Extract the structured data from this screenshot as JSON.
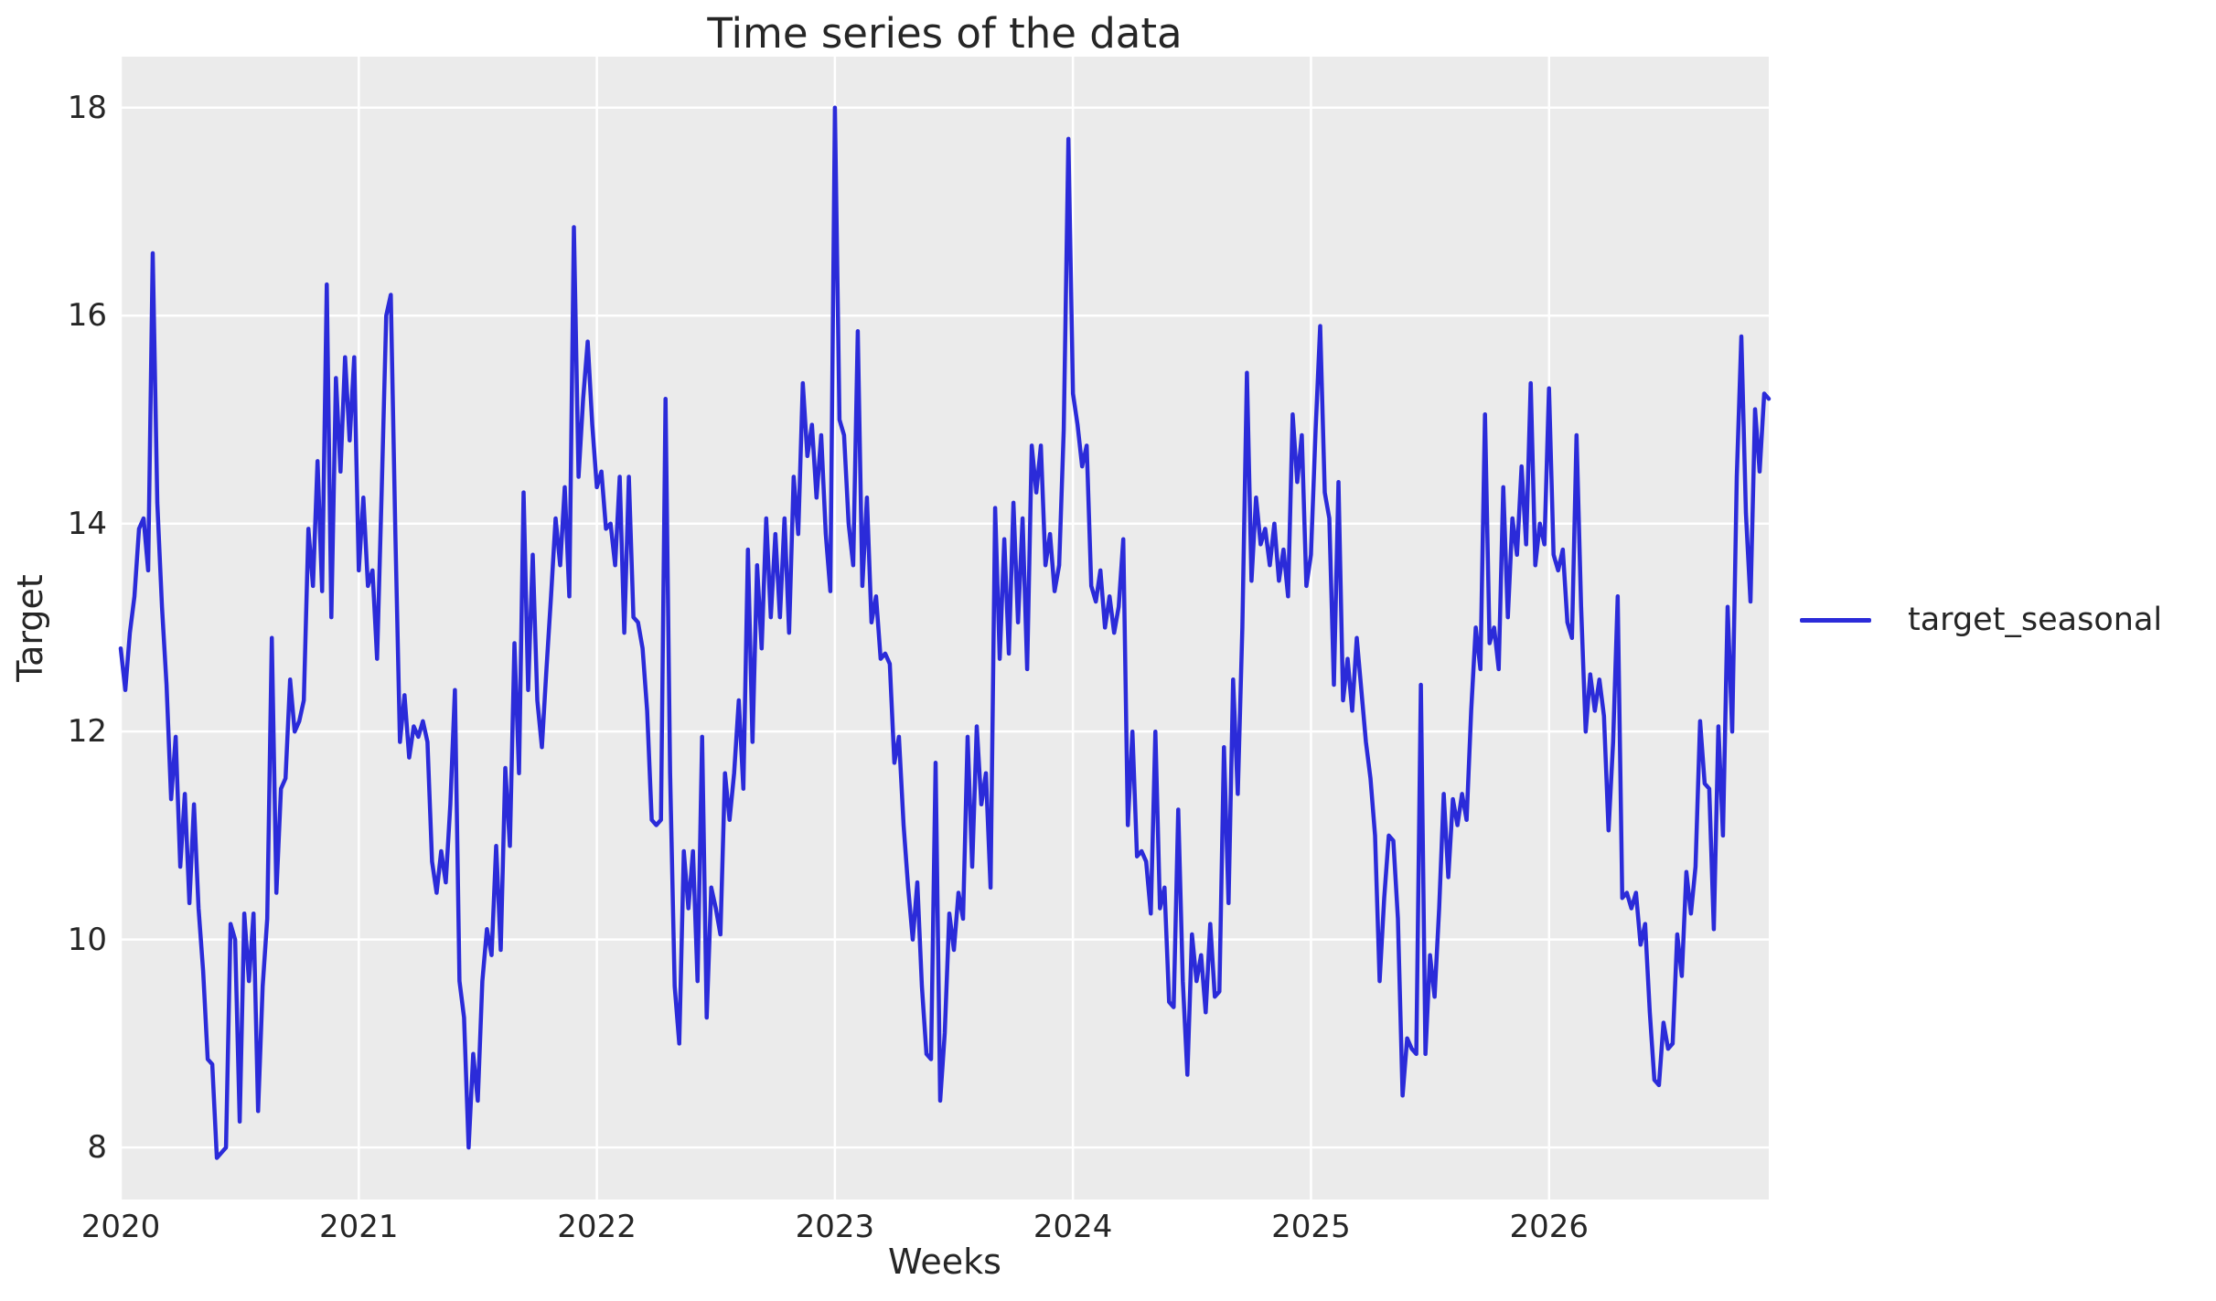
{
  "style": {
    "figure_background": "#ffffff",
    "plot_background": "#ebebeb",
    "grid_color": "#ffffff",
    "text_color": "#262626",
    "line_color": "#2b2bd9"
  },
  "legend": {
    "label": "target_seasonal"
  },
  "chart_data": {
    "type": "line",
    "title": "Time series of the data",
    "xlabel": "Weeks",
    "ylabel": "Target",
    "x_tick_labels": [
      "2020",
      "2021",
      "2022",
      "2023",
      "2024",
      "2025",
      "2026"
    ],
    "x_tick_week_indices": [
      0,
      52,
      104,
      156,
      208,
      260,
      312
    ],
    "y_tick_labels": [
      "8",
      "10",
      "12",
      "14",
      "16",
      "18"
    ],
    "y_tick_values": [
      8,
      10,
      12,
      14,
      16,
      18
    ],
    "ylim": [
      7.5,
      18.49
    ],
    "x_start_year": 2020,
    "points_per_year": 52,
    "frequency": "weekly",
    "grid": true,
    "legend_position": "outside-right-center",
    "series": [
      {
        "name": "target_seasonal",
        "color": "#2b2bd9",
        "values": [
          12.8,
          12.4,
          12.95,
          13.3,
          13.95,
          14.05,
          13.55,
          16.6,
          14.2,
          13.2,
          12.45,
          11.35,
          11.95,
          10.7,
          11.4,
          10.35,
          11.3,
          10.3,
          9.7,
          8.85,
          8.8,
          7.9,
          7.95,
          8.0,
          10.15,
          10.0,
          8.25,
          10.25,
          9.6,
          10.25,
          8.35,
          9.55,
          10.2,
          12.9,
          10.45,
          11.45,
          11.55,
          12.5,
          12.0,
          12.1,
          12.3,
          13.95,
          13.4,
          14.6,
          13.35,
          16.3,
          13.1,
          15.4,
          14.5,
          15.6,
          14.8,
          15.6,
          13.55,
          14.25,
          13.4,
          13.55,
          12.7,
          14.3,
          16.0,
          16.2,
          13.9,
          11.9,
          12.35,
          11.75,
          12.05,
          11.95,
          12.1,
          11.9,
          10.75,
          10.45,
          10.85,
          10.55,
          11.3,
          12.4,
          9.6,
          9.25,
          8.0,
          8.9,
          8.45,
          9.6,
          10.1,
          9.85,
          10.9,
          9.9,
          11.65,
          10.9,
          12.85,
          11.6,
          14.3,
          12.4,
          13.7,
          12.3,
          11.85,
          12.6,
          13.3,
          14.05,
          13.6,
          14.35,
          13.3,
          16.85,
          14.45,
          15.2,
          15.75,
          14.95,
          14.35,
          14.5,
          13.95,
          14.0,
          13.6,
          14.45,
          12.95,
          14.45,
          13.1,
          13.05,
          12.8,
          12.2,
          11.15,
          11.1,
          11.15,
          15.2,
          11.6,
          9.55,
          9.0,
          10.85,
          10.3,
          10.85,
          9.6,
          11.95,
          9.25,
          10.5,
          10.3,
          10.05,
          11.6,
          11.15,
          11.6,
          12.3,
          11.45,
          13.75,
          11.9,
          13.6,
          12.8,
          14.05,
          13.1,
          13.9,
          13.1,
          14.05,
          12.95,
          14.45,
          13.9,
          15.35,
          14.65,
          14.95,
          14.25,
          14.85,
          13.9,
          13.35,
          18.0,
          15.0,
          14.85,
          14.0,
          13.6,
          15.85,
          13.4,
          14.25,
          13.05,
          13.3,
          12.7,
          12.75,
          12.65,
          11.7,
          11.95,
          11.1,
          10.5,
          10.0,
          10.55,
          9.55,
          8.9,
          8.85,
          11.7,
          8.45,
          9.1,
          10.25,
          9.9,
          10.45,
          10.2,
          11.95,
          10.7,
          12.05,
          11.3,
          11.6,
          10.5,
          14.15,
          12.7,
          13.85,
          12.75,
          14.2,
          13.05,
          14.05,
          12.6,
          14.75,
          14.3,
          14.75,
          13.6,
          13.9,
          13.35,
          13.6,
          14.9,
          17.7,
          15.25,
          14.95,
          14.55,
          14.75,
          13.4,
          13.25,
          13.55,
          13.0,
          13.3,
          12.95,
          13.2,
          13.85,
          11.1,
          12.0,
          10.8,
          10.85,
          10.75,
          10.25,
          12.0,
          10.3,
          10.5,
          9.4,
          9.35,
          11.25,
          9.6,
          8.7,
          10.05,
          9.6,
          9.85,
          9.3,
          10.15,
          9.45,
          9.5,
          11.85,
          10.35,
          12.5,
          11.4,
          13.0,
          15.45,
          13.45,
          14.25,
          13.8,
          13.95,
          13.6,
          14.0,
          13.45,
          13.75,
          13.3,
          15.05,
          14.4,
          14.85,
          13.4,
          13.7,
          14.9,
          15.9,
          14.3,
          14.05,
          12.45,
          14.4,
          12.3,
          12.7,
          12.2,
          12.9,
          12.4,
          11.9,
          11.55,
          11.0,
          9.6,
          10.4,
          11.0,
          10.95,
          10.2,
          8.5,
          9.05,
          8.95,
          8.9,
          12.45,
          8.9,
          9.85,
          9.45,
          10.3,
          11.4,
          10.6,
          11.35,
          11.1,
          11.4,
          11.15,
          12.2,
          13.0,
          12.6,
          15.05,
          12.85,
          13.0,
          12.6,
          14.35,
          13.1,
          14.05,
          13.7,
          14.55,
          13.8,
          15.35,
          13.6,
          14.0,
          13.8,
          15.3,
          13.7,
          13.55,
          13.75,
          13.05,
          12.9,
          14.85,
          13.2,
          12.0,
          12.55,
          12.2,
          12.5,
          12.15,
          11.05,
          11.9,
          13.3,
          10.4,
          10.45,
          10.3,
          10.45,
          9.95,
          10.15,
          9.3,
          8.65,
          8.6,
          9.2,
          8.95,
          9.0,
          10.05,
          9.65,
          10.65,
          10.25,
          10.7,
          12.1,
          11.5,
          11.45,
          10.1,
          12.05,
          11.0,
          13.2,
          12.0,
          14.45,
          15.8,
          14.1,
          13.25,
          15.1,
          14.5,
          15.25,
          15.2
        ]
      }
    ]
  }
}
